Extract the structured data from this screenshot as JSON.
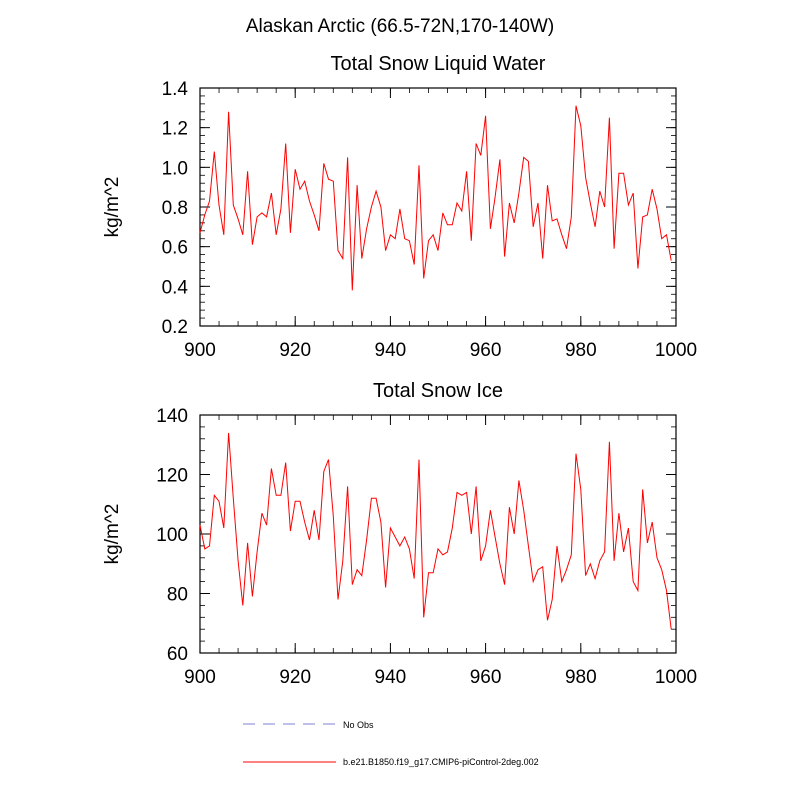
{
  "figure_title": "Alaskan Arctic (66.5-72N,170-140W)",
  "legend": [
    {
      "label": "No Obs",
      "color": "#9999dd",
      "style": "dashed"
    },
    {
      "label": "b.e21.B1850.f19_g17.CMIP6-piControl-2deg.002",
      "color": "#ff0000",
      "style": "solid"
    }
  ],
  "chart_data": [
    {
      "type": "line",
      "title": "Total Snow Liquid Water",
      "xlabel": "",
      "ylabel": "kg/m^2",
      "xlim": [
        900,
        1000
      ],
      "ylim": [
        0.2,
        1.4
      ],
      "x_ticks": [
        900,
        920,
        940,
        960,
        980,
        1000
      ],
      "x_tick_labels": [
        "900",
        "920",
        "940",
        "960",
        "980",
        "1000"
      ],
      "y_ticks": [
        0.2,
        0.4,
        0.6,
        0.8,
        1.0,
        1.2,
        1.4
      ],
      "y_tick_labels": [
        "0.2",
        "0.4",
        "0.6",
        "0.8",
        "1.0",
        "1.2",
        "1.4"
      ],
      "x_start": 900,
      "series": [
        {
          "name": "b.e21.B1850.f19_g17.CMIP6-piControl-2deg.002",
          "color": "#ff0000",
          "values": [
            0.67,
            0.76,
            0.83,
            1.08,
            0.81,
            0.66,
            1.28,
            0.81,
            0.74,
            0.66,
            0.98,
            0.61,
            0.75,
            0.77,
            0.75,
            0.87,
            0.66,
            0.79,
            1.12,
            0.67,
            0.99,
            0.89,
            0.93,
            0.83,
            0.76,
            0.68,
            1.02,
            0.94,
            0.93,
            0.58,
            0.54,
            1.05,
            0.38,
            0.91,
            0.54,
            0.69,
            0.8,
            0.88,
            0.8,
            0.58,
            0.66,
            0.64,
            0.79,
            0.64,
            0.63,
            0.51,
            1.01,
            0.44,
            0.63,
            0.66,
            0.58,
            0.77,
            0.71,
            0.71,
            0.82,
            0.78,
            0.98,
            0.63,
            1.12,
            1.06,
            1.26,
            0.69,
            0.85,
            1.04,
            0.55,
            0.82,
            0.72,
            0.87,
            1.05,
            1.03,
            0.7,
            0.82,
            0.54,
            0.91,
            0.73,
            0.74,
            0.66,
            0.59,
            0.75,
            1.31,
            1.21,
            0.95,
            0.82,
            0.7,
            0.88,
            0.8,
            1.25,
            0.59,
            0.97,
            0.97,
            0.81,
            0.87,
            0.49,
            0.75,
            0.76,
            0.89,
            0.79,
            0.64,
            0.66,
            0.53
          ]
        }
      ]
    },
    {
      "type": "line",
      "title": "Total Snow Ice",
      "xlabel": "",
      "ylabel": "kg/m^2",
      "xlim": [
        900,
        1000
      ],
      "ylim": [
        60,
        140
      ],
      "x_ticks": [
        900,
        920,
        940,
        960,
        980,
        1000
      ],
      "x_tick_labels": [
        "900",
        "920",
        "940",
        "960",
        "980",
        "1000"
      ],
      "y_ticks": [
        60,
        80,
        100,
        120,
        140
      ],
      "y_tick_labels": [
        "60",
        "80",
        "100",
        "120",
        "140"
      ],
      "x_start": 900,
      "series": [
        {
          "name": "b.e21.B1850.f19_g17.CMIP6-piControl-2deg.002",
          "color": "#ff0000",
          "values": [
            103,
            95,
            96,
            113,
            111,
            102,
            134,
            112,
            91,
            76,
            97,
            79,
            94,
            107,
            103,
            122,
            113,
            113,
            124,
            101,
            111,
            111,
            104,
            98,
            108,
            98,
            121,
            125,
            106,
            78,
            91,
            116,
            83,
            88,
            86,
            98,
            112,
            112,
            104,
            82,
            102,
            99,
            96,
            99,
            95,
            85,
            125,
            72,
            87,
            87,
            95,
            93,
            94,
            102,
            114,
            113,
            114,
            100,
            116,
            91,
            96,
            108,
            99,
            90,
            83,
            109,
            100,
            118,
            108,
            96,
            84,
            88,
            89,
            71,
            78,
            96,
            84,
            88,
            93,
            127,
            115,
            86,
            90,
            85,
            91,
            94,
            131,
            91,
            107,
            94,
            102,
            84,
            81,
            115,
            97,
            104,
            92,
            88,
            81,
            68
          ]
        }
      ]
    }
  ]
}
